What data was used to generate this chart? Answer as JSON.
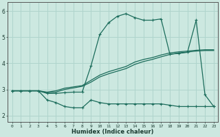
{
  "xlabel": "Humidex (Indice chaleur)",
  "xlim": [
    -0.5,
    23.5
  ],
  "ylim": [
    1.75,
    6.35
  ],
  "xticks": [
    0,
    1,
    2,
    3,
    4,
    5,
    6,
    7,
    8,
    9,
    10,
    11,
    12,
    13,
    14,
    15,
    16,
    17,
    18,
    19,
    20,
    21,
    22,
    23
  ],
  "yticks": [
    2,
    3,
    4,
    5,
    6
  ],
  "background_color": "#cce8e0",
  "grid_color": "#afd4cc",
  "line_color": "#1a6b5a",
  "line_width": 0.9,
  "marker": "+",
  "marker_size": 3.5,
  "curve_bottom_x": [
    0,
    1,
    2,
    3,
    4,
    5,
    6,
    7,
    8,
    9,
    10,
    11,
    12,
    13,
    14,
    15,
    16,
    17,
    18,
    19,
    20,
    21,
    22,
    23
  ],
  "curve_bottom_y": [
    2.95,
    2.95,
    2.95,
    2.95,
    2.6,
    2.5,
    2.35,
    2.3,
    2.3,
    2.6,
    2.5,
    2.45,
    2.45,
    2.45,
    2.45,
    2.45,
    2.45,
    2.45,
    2.4,
    2.35,
    2.35,
    2.35,
    2.35,
    2.35
  ],
  "curve_mid1_x": [
    0,
    1,
    2,
    3,
    4,
    5,
    6,
    7,
    8,
    9,
    10,
    11,
    12,
    13,
    14,
    15,
    16,
    17,
    18,
    19,
    20,
    21,
    22,
    23
  ],
  "curve_mid1_y": [
    2.95,
    2.95,
    2.95,
    2.95,
    2.9,
    2.95,
    3.05,
    3.1,
    3.15,
    3.35,
    3.55,
    3.68,
    3.78,
    3.88,
    4.05,
    4.15,
    4.22,
    4.32,
    4.4,
    4.44,
    4.47,
    4.5,
    4.52,
    4.52
  ],
  "curve_mid2_x": [
    0,
    1,
    2,
    3,
    4,
    5,
    6,
    7,
    8,
    9,
    10,
    11,
    12,
    13,
    14,
    15,
    16,
    17,
    18,
    19,
    20,
    21,
    22,
    23
  ],
  "curve_mid2_y": [
    2.95,
    2.95,
    2.95,
    2.95,
    2.88,
    2.9,
    3.0,
    3.06,
    3.12,
    3.28,
    3.48,
    3.6,
    3.7,
    3.8,
    3.96,
    4.07,
    4.15,
    4.25,
    4.34,
    4.4,
    4.43,
    4.47,
    4.49,
    4.49
  ],
  "curve_main_x": [
    0,
    1,
    2,
    3,
    4,
    5,
    6,
    7,
    8,
    9,
    10,
    11,
    12,
    13,
    14,
    15,
    16,
    17,
    18,
    19,
    20,
    21,
    22,
    23
  ],
  "curve_main_y": [
    2.95,
    2.95,
    2.95,
    2.95,
    2.85,
    2.85,
    2.88,
    2.9,
    2.9,
    3.9,
    5.1,
    5.55,
    5.8,
    5.9,
    5.75,
    5.65,
    5.65,
    5.7,
    4.35,
    4.38,
    4.42,
    5.65,
    2.8,
    2.35
  ]
}
